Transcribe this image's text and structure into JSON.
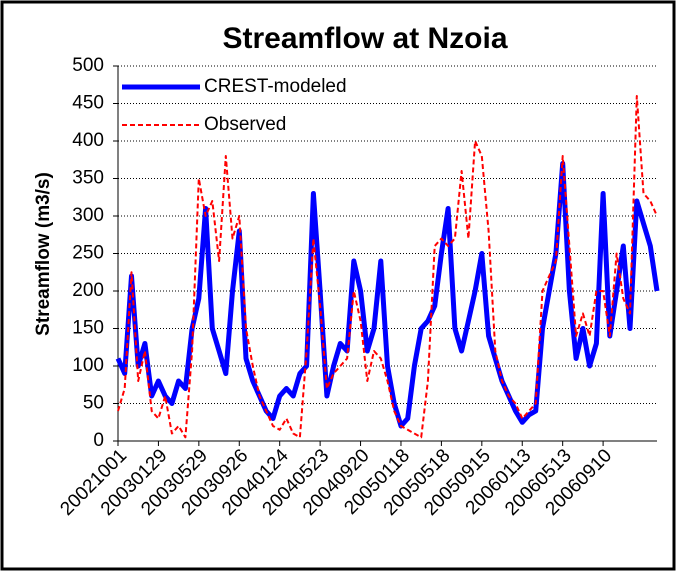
{
  "chart_data": {
    "type": "line",
    "title": "Streamflow at Nzoia",
    "y_label": "Streamflow (m3/s)",
    "categories": [
      "20021001",
      null,
      null,
      null,
      null,
      null,
      "20030129",
      null,
      null,
      null,
      null,
      null,
      "20030529",
      null,
      null,
      null,
      null,
      null,
      "20030926",
      null,
      null,
      null,
      null,
      null,
      "20040124",
      null,
      null,
      null,
      null,
      null,
      "20040523",
      null,
      null,
      null,
      null,
      null,
      "20040920",
      null,
      null,
      null,
      null,
      null,
      "20050118",
      null,
      null,
      null,
      null,
      null,
      "20050518",
      null,
      null,
      null,
      null,
      null,
      "20050915",
      null,
      null,
      null,
      null,
      null,
      "20060113",
      null,
      null,
      null,
      null,
      null,
      "20060513",
      null,
      null,
      null,
      null,
      null,
      "20060910",
      null,
      null,
      null,
      null,
      null,
      null,
      null,
      null
    ],
    "series": [
      {
        "name": "CREST-modeled",
        "color": "#0000ff",
        "values": [
          110,
          90,
          220,
          100,
          130,
          60,
          80,
          60,
          50,
          80,
          70,
          150,
          190,
          310,
          150,
          120,
          90,
          200,
          280,
          110,
          80,
          60,
          40,
          30,
          60,
          70,
          60,
          90,
          100,
          330,
          200,
          60,
          100,
          130,
          120,
          240,
          200,
          120,
          150,
          240,
          100,
          50,
          20,
          30,
          100,
          150,
          160,
          180,
          250,
          310,
          150,
          120,
          160,
          200,
          250,
          140,
          110,
          80,
          60,
          40,
          25,
          35,
          40,
          150,
          200,
          250,
          370,
          200,
          110,
          150,
          100,
          130,
          330,
          140,
          200,
          260,
          150,
          320,
          290,
          260,
          200
        ]
      },
      {
        "name": "Observed",
        "color": "#ff0000",
        "values": [
          40,
          70,
          225,
          80,
          120,
          40,
          30,
          60,
          10,
          20,
          5,
          120,
          350,
          300,
          320,
          240,
          380,
          270,
          300,
          150,
          100,
          60,
          40,
          20,
          15,
          30,
          10,
          5,
          120,
          270,
          180,
          70,
          90,
          100,
          110,
          200,
          160,
          80,
          120,
          110,
          80,
          40,
          20,
          15,
          10,
          5,
          80,
          260,
          270,
          260,
          270,
          360,
          270,
          400,
          380,
          280,
          120,
          80,
          60,
          50,
          30,
          40,
          50,
          200,
          220,
          240,
          380,
          260,
          140,
          170,
          140,
          200,
          200,
          140,
          250,
          190,
          170,
          460,
          330,
          320,
          300
        ]
      }
    ],
    "ylim": [
      0,
      500
    ],
    "yticks": [
      0,
      50,
      100,
      150,
      200,
      250,
      300,
      350,
      400,
      450,
      500
    ],
    "grid": true,
    "legend": "upper left"
  }
}
